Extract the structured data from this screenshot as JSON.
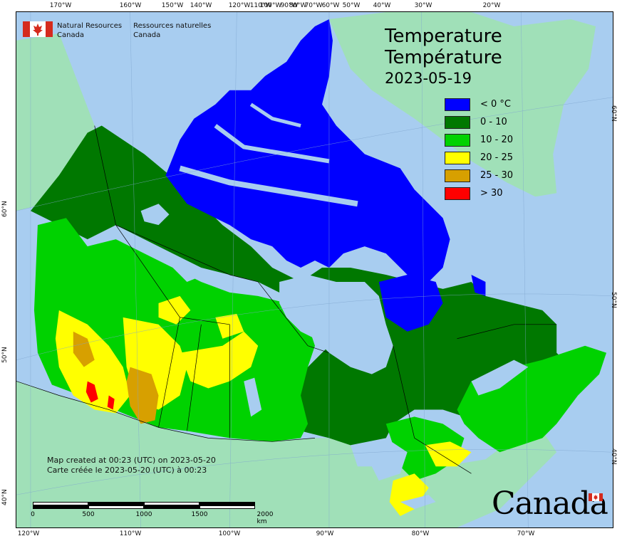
{
  "agency": {
    "name_en_line1": "Natural Resources",
    "name_en_line2": "Canada",
    "name_fr_line1": "Ressources naturelles",
    "name_fr_line2": "Canada"
  },
  "title": {
    "en": "Temperature",
    "fr": "Température",
    "date": "2023-05-19"
  },
  "legend": [
    {
      "label": "< 0 °C",
      "color": "#0000ff"
    },
    {
      "label": "0 - 10",
      "color": "#007800"
    },
    {
      "label": "10 - 20",
      "color": "#00d200"
    },
    {
      "label": "20 - 25",
      "color": "#ffff00"
    },
    {
      "label": "25 - 30",
      "color": "#d7a000"
    },
    {
      "label": "> 30",
      "color": "#ff0000"
    }
  ],
  "credit": {
    "line_en": "Map created at 00:23 (UTC) on 2023-05-20",
    "line_fr": "Carte créée le 2023-05-20 (UTC) à 00:23"
  },
  "scalebar": {
    "labels": [
      "0",
      "500",
      "1000",
      "1500",
      "2000  km"
    ]
  },
  "graticule": {
    "top": [
      "170°W",
      "160°W",
      "150°W",
      "140°W",
      "120°W",
      "110°W",
      "100°W",
      "90°W",
      "80°W",
      "70°W",
      "60°W",
      "50°W",
      "40°W",
      "30°W",
      "20°W"
    ],
    "bottom": [
      "120°W",
      "110°W",
      "100°W",
      "90°W",
      "80°W",
      "70°W"
    ],
    "left": [
      "60°N",
      "50°N",
      "40°N"
    ],
    "right": [
      "60°N",
      "50°N",
      "40°N"
    ]
  },
  "wordmark": "Canada",
  "colors": {
    "ocean": "#a8cdf0",
    "foreign_land": "#a0e0b8",
    "lake": "#a8cdf0",
    "border": "#000000"
  }
}
